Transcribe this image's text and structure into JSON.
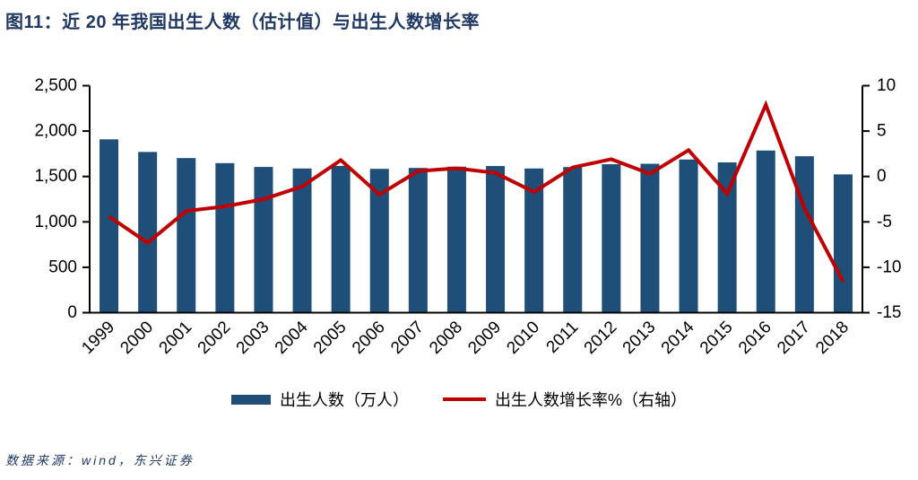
{
  "title": "图11：近 20 年我国出生人数（估计值）与出生人数增长率",
  "source": "数据来源：wind，东兴证券",
  "colors": {
    "bar": "#1F4E79",
    "line": "#C00000",
    "title_text": "#1F3864",
    "axis": "#000000"
  },
  "legend": [
    {
      "label": "出生人数（万人）"
    },
    {
      "label": "出生人数增长率%（右轴）"
    }
  ],
  "chart_data": {
    "type": "bar+line",
    "title": "图11：近 20 年我国出生人数（估计值）与出生人数增长率",
    "categories": [
      "1999",
      "2000",
      "2001",
      "2002",
      "2003",
      "2004",
      "2005",
      "2006",
      "2007",
      "2008",
      "2009",
      "2010",
      "2011",
      "2012",
      "2013",
      "2014",
      "2015",
      "2016",
      "2017",
      "2018"
    ],
    "series": [
      {
        "name": "出生人数（万人）",
        "type": "bar",
        "axis": "left",
        "values": [
          1909,
          1770,
          1703,
          1647,
          1605,
          1588,
          1617,
          1584,
          1594,
          1608,
          1615,
          1588,
          1604,
          1635,
          1640,
          1687,
          1655,
          1786,
          1723,
          1523
        ]
      },
      {
        "name": "出生人数增长率%（右轴）",
        "type": "line",
        "axis": "right",
        "values": [
          -4.4,
          -7.3,
          -3.8,
          -3.3,
          -2.5,
          -1.1,
          1.8,
          -2.0,
          0.6,
          0.9,
          0.4,
          -1.7,
          1.0,
          1.9,
          0.3,
          2.9,
          -1.9,
          7.9,
          -3.5,
          -11.6
        ]
      }
    ],
    "left_axis": {
      "min": 0,
      "max": 2500,
      "step": 500,
      "tick_labels": [
        "0",
        "500",
        "1,000",
        "1,500",
        "2,000",
        "2,500"
      ]
    },
    "right_axis": {
      "min": -15,
      "max": 10,
      "step": 5,
      "tick_labels": [
        "-15",
        "-10",
        "-5",
        "0",
        "5",
        "10"
      ]
    },
    "grid": false,
    "legend_position": "bottom"
  }
}
